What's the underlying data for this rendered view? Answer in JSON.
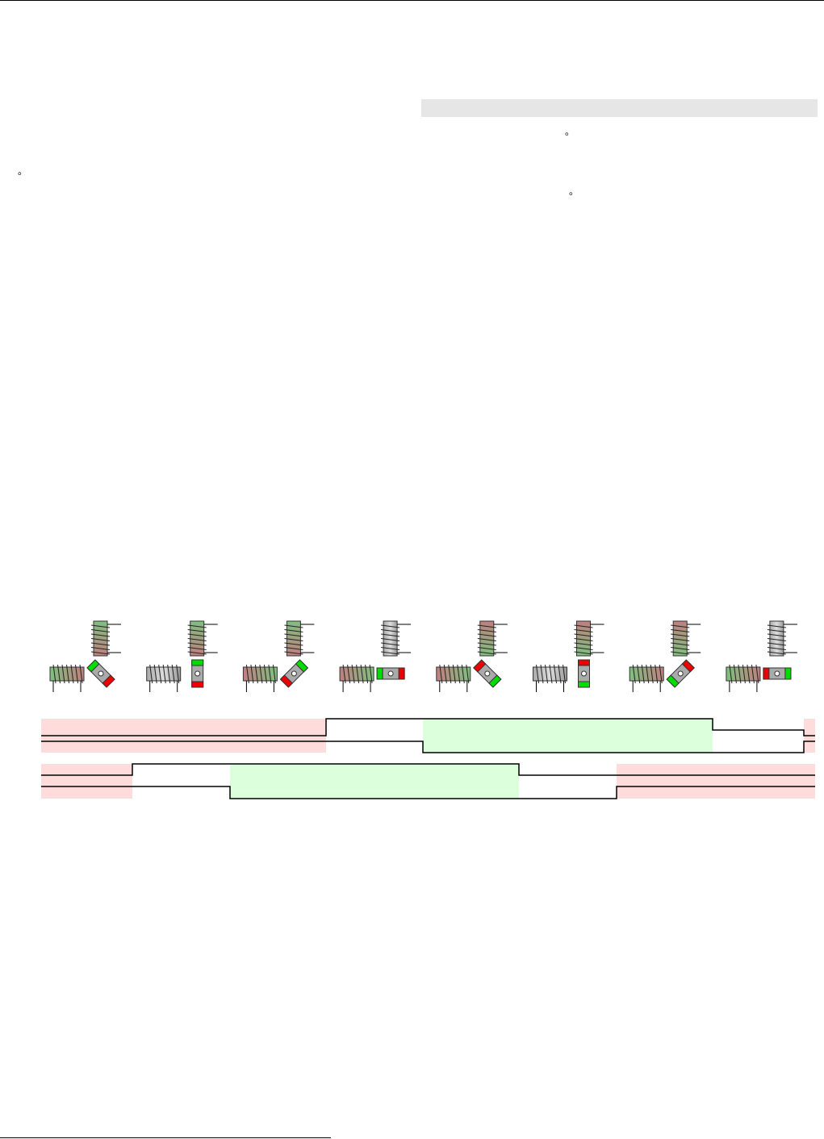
{
  "paragraphs": [
    "。",
    "。",
    "。"
  ]
}
